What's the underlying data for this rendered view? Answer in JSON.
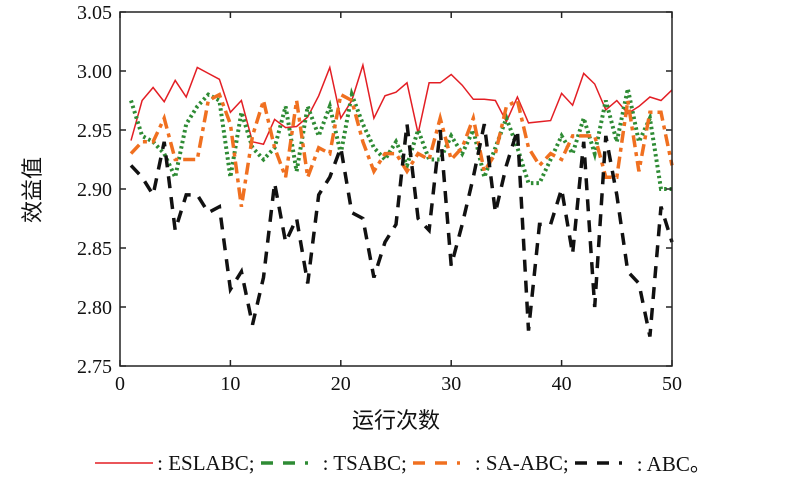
{
  "chart_data": {
    "type": "line",
    "title": "",
    "xlabel": "运行次数",
    "ylabel": "效益值",
    "xlim": [
      0,
      50
    ],
    "ylim": [
      2.75,
      3.05
    ],
    "xticks": [
      "0",
      "10",
      "20",
      "30",
      "40",
      "50"
    ],
    "yticks": [
      "2.75",
      "2.80",
      "2.85",
      "2.90",
      "2.95",
      "3.00",
      "3.05"
    ],
    "grid": false,
    "legend_placement": "bottom",
    "x": [
      1,
      2,
      3,
      4,
      5,
      6,
      7,
      8,
      9,
      10,
      11,
      12,
      13,
      14,
      15,
      16,
      17,
      18,
      19,
      20,
      21,
      22,
      23,
      24,
      25,
      26,
      27,
      28,
      29,
      30,
      31,
      32,
      33,
      34,
      35,
      36,
      37,
      38,
      39,
      40,
      41,
      42,
      43,
      44,
      45,
      46,
      47,
      48,
      49,
      50
    ],
    "series": [
      {
        "name": "ESLABC",
        "legend_label": ": ESLABC;",
        "color": "#e31e24",
        "style": "solid",
        "values": [
          2.941,
          2.975,
          2.986,
          2.974,
          2.992,
          2.978,
          3.003,
          2.998,
          2.993,
          2.965,
          2.975,
          2.94,
          2.938,
          2.959,
          2.952,
          2.953,
          2.961,
          2.979,
          3.003,
          2.96,
          2.975,
          3.005,
          2.96,
          2.979,
          2.982,
          2.99,
          2.947,
          2.99,
          2.99,
          2.997,
          2.988,
          2.976,
          2.976,
          2.975,
          2.957,
          2.978,
          2.956,
          2.957,
          2.958,
          2.981,
          2.971,
          2.998,
          2.989,
          2.967,
          2.975,
          2.964,
          2.97,
          2.978,
          2.975,
          2.984
        ]
      },
      {
        "name": "TSABC",
        "legend_label": ": TSABC;",
        "color": "#2e8b34",
        "style": "dotted",
        "values": [
          2.975,
          2.945,
          2.94,
          2.93,
          2.91,
          2.955,
          2.97,
          2.98,
          2.975,
          2.91,
          2.965,
          2.935,
          2.925,
          2.935,
          2.97,
          2.915,
          2.97,
          2.945,
          2.97,
          2.93,
          2.98,
          2.955,
          2.935,
          2.925,
          2.94,
          2.92,
          2.95,
          2.925,
          2.925,
          2.945,
          2.93,
          2.95,
          2.91,
          2.935,
          2.96,
          2.935,
          2.905,
          2.905,
          2.925,
          2.945,
          2.93,
          2.96,
          2.93,
          2.975,
          2.94,
          2.985,
          2.94,
          2.96,
          2.9,
          2.9
        ]
      },
      {
        "name": "SA-ABC",
        "legend_label": ": SA-ABC;",
        "color": "#f07020",
        "style": "dashdot",
        "values": [
          2.93,
          2.94,
          2.94,
          2.96,
          2.925,
          2.925,
          2.925,
          2.975,
          2.98,
          2.955,
          2.885,
          2.945,
          2.975,
          2.935,
          2.91,
          2.975,
          2.91,
          2.935,
          2.93,
          2.98,
          2.975,
          2.94,
          2.915,
          2.93,
          2.93,
          2.915,
          2.93,
          2.925,
          2.96,
          2.925,
          2.935,
          2.96,
          2.915,
          2.93,
          2.97,
          2.975,
          2.935,
          2.92,
          2.93,
          2.925,
          2.945,
          2.945,
          2.945,
          2.91,
          2.91,
          2.975,
          2.915,
          2.965,
          2.965,
          2.92
        ]
      },
      {
        "name": "ABC",
        "legend_label": ": ABC。",
        "color": "#111111",
        "style": "dashed",
        "values": [
          2.92,
          2.91,
          2.895,
          2.94,
          2.865,
          2.895,
          2.895,
          2.88,
          2.885,
          2.815,
          2.83,
          2.785,
          2.825,
          2.905,
          2.855,
          2.875,
          2.82,
          2.895,
          2.91,
          2.935,
          2.88,
          2.875,
          2.825,
          2.855,
          2.87,
          2.955,
          2.875,
          2.865,
          2.95,
          2.835,
          2.87,
          2.91,
          2.955,
          2.88,
          2.92,
          2.95,
          2.78,
          2.87,
          2.87,
          2.9,
          2.845,
          2.94,
          2.8,
          2.945,
          2.895,
          2.83,
          2.82,
          2.775,
          2.885,
          2.855
        ]
      }
    ]
  }
}
